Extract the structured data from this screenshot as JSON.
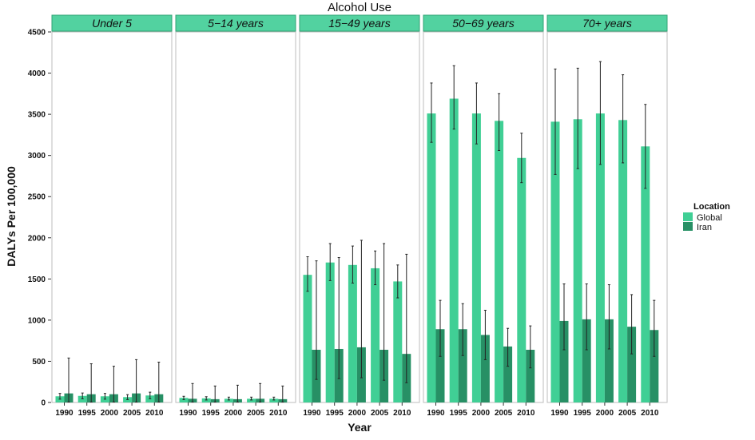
{
  "chart_data": {
    "type": "bar",
    "title": "Alcohol Use",
    "xlabel": "Year",
    "ylabel": "DALYs Per 100,000",
    "ylim": [
      0,
      4500
    ],
    "yticks": [
      0,
      500,
      1000,
      1500,
      2000,
      2500,
      3000,
      3500,
      4000,
      4500
    ],
    "categories": [
      "1990",
      "1995",
      "2000",
      "2005",
      "2010"
    ],
    "colors": {
      "Global": "#40cf95",
      "Iran": "#279065",
      "strip": "#52d2a0",
      "strip_border": "#30a374",
      "panel_border": "#bdbdbd"
    },
    "legend": {
      "title": "Location",
      "position": "right",
      "entries": [
        "Global",
        "Iran"
      ]
    },
    "facets": [
      {
        "label": "Under 5",
        "series": [
          {
            "name": "Global",
            "values": [
              75,
              80,
              75,
              65,
              85
            ],
            "err_low": [
              40,
              45,
              40,
              35,
              45
            ],
            "err_high": [
              110,
              115,
              110,
              95,
              125
            ]
          },
          {
            "name": "Iran",
            "values": [
              110,
              100,
              100,
              110,
              100
            ],
            "err_low": [
              5,
              5,
              5,
              5,
              5
            ],
            "err_high": [
              540,
              470,
              440,
              520,
              490
            ]
          }
        ]
      },
      {
        "label": "5−14 years",
        "series": [
          {
            "name": "Global",
            "values": [
              55,
              50,
              45,
              45,
              45
            ],
            "err_low": [
              35,
              30,
              30,
              30,
              30
            ],
            "err_high": [
              75,
              70,
              65,
              65,
              65
            ]
          },
          {
            "name": "Iran",
            "values": [
              45,
              40,
              40,
              45,
              40
            ],
            "err_low": [
              5,
              5,
              5,
              5,
              5
            ],
            "err_high": [
              230,
              200,
              210,
              230,
              200
            ]
          }
        ]
      },
      {
        "label": "15−49 years",
        "series": [
          {
            "name": "Global",
            "values": [
              1550,
              1700,
              1670,
              1630,
              1470
            ],
            "err_low": [
              1350,
              1480,
              1450,
              1430,
              1270
            ],
            "err_high": [
              1770,
              1930,
              1900,
              1840,
              1670
            ]
          },
          {
            "name": "Iran",
            "values": [
              640,
              650,
              670,
              640,
              590
            ],
            "err_low": [
              280,
              290,
              300,
              270,
              240
            ],
            "err_high": [
              1720,
              1760,
              1970,
              1930,
              1800
            ]
          }
        ]
      },
      {
        "label": "50−69 years",
        "series": [
          {
            "name": "Global",
            "values": [
              3510,
              3690,
              3510,
              3420,
              2970
            ],
            "err_low": [
              3160,
              3320,
              3140,
              3060,
              2670
            ],
            "err_high": [
              3880,
              4090,
              3880,
              3750,
              3270
            ]
          },
          {
            "name": "Iran",
            "values": [
              890,
              890,
              820,
              680,
              640
            ],
            "err_low": [
              560,
              570,
              520,
              440,
              420
            ],
            "err_high": [
              1240,
              1200,
              1120,
              900,
              930
            ]
          }
        ]
      },
      {
        "label": "70+ years",
        "series": [
          {
            "name": "Global",
            "values": [
              3410,
              3440,
              3510,
              3430,
              3110
            ],
            "err_low": [
              2770,
              2840,
              2890,
              2910,
              2600
            ],
            "err_high": [
              4050,
              4060,
              4140,
              3980,
              3620
            ]
          },
          {
            "name": "Iran",
            "values": [
              990,
              1010,
              1010,
              920,
              880
            ],
            "err_low": [
              640,
              640,
              650,
              590,
              560
            ],
            "err_high": [
              1440,
              1440,
              1430,
              1310,
              1240
            ]
          }
        ]
      }
    ]
  }
}
